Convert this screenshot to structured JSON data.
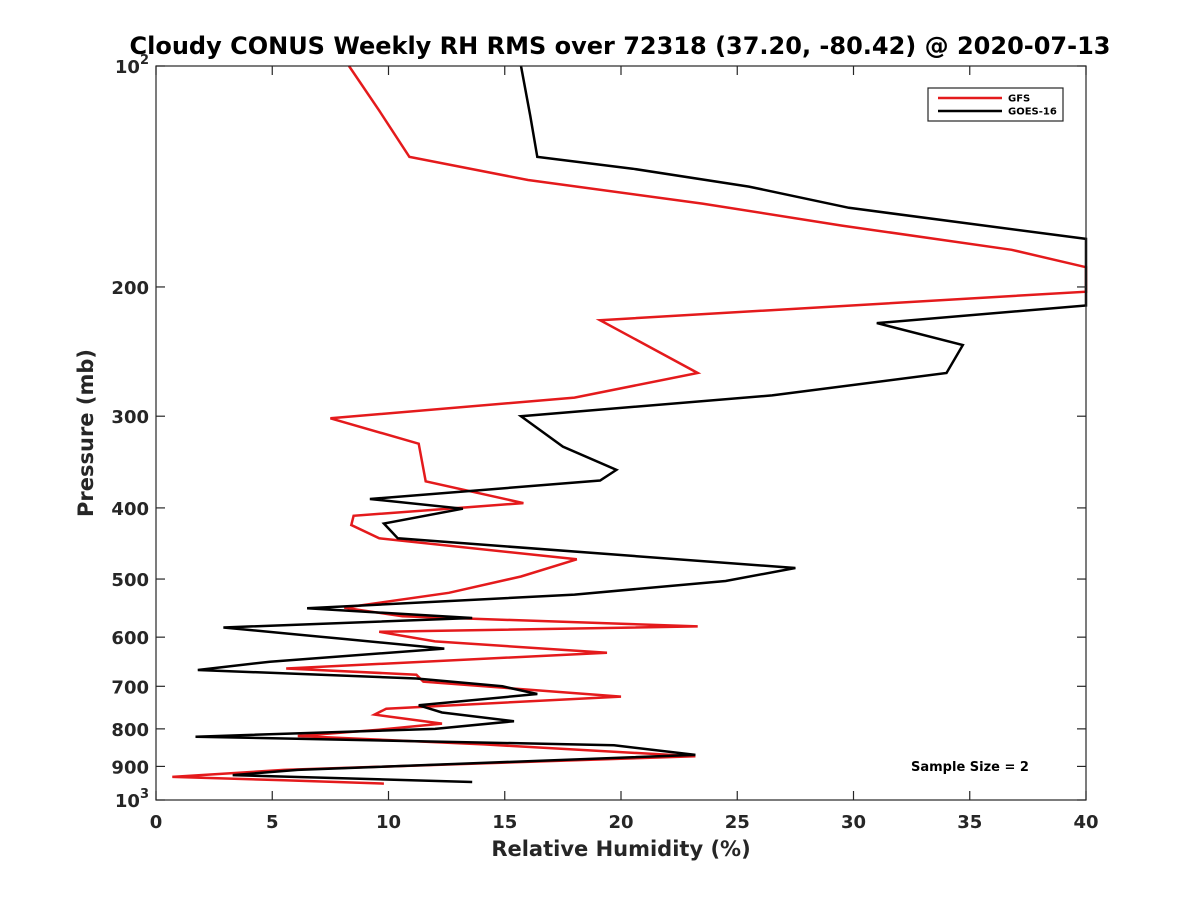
{
  "chart_data": {
    "type": "line",
    "title": "Cloudy CONUS Weekly RH RMS over 72318 (37.20, -80.42) @ 2020-07-13",
    "xlabel": "Relative Humidity (%)",
    "ylabel": "Pressure (mb)",
    "xlim": [
      0,
      40
    ],
    "ylim": [
      100,
      1000
    ],
    "yscale": "log",
    "y_reversed": true,
    "x_ticks": [
      0,
      5,
      10,
      15,
      20,
      25,
      30,
      35,
      40
    ],
    "x_tick_labels": [
      "0",
      "5",
      "10",
      "15",
      "20",
      "25",
      "30",
      "35",
      "40"
    ],
    "y_ticks": [
      100,
      200,
      300,
      400,
      500,
      600,
      700,
      800,
      900,
      1000
    ],
    "y_tick_labels": [
      {
        "base": "10",
        "sup": "2"
      },
      {
        "base": "200",
        "sup": ""
      },
      {
        "base": "300",
        "sup": ""
      },
      {
        "base": "400",
        "sup": ""
      },
      {
        "base": "500",
        "sup": ""
      },
      {
        "base": "600",
        "sup": ""
      },
      {
        "base": "700",
        "sup": ""
      },
      {
        "base": "800",
        "sup": ""
      },
      {
        "base": "900",
        "sup": ""
      },
      {
        "base": "10",
        "sup": "3"
      }
    ],
    "legend_position": "top-right",
    "annotation": "Sample Size = 2",
    "series": [
      {
        "name": "GFS",
        "color": "#e41a1c",
        "points": [
          [
            8.3,
            100
          ],
          [
            9.6,
            115
          ],
          [
            10.9,
            133
          ],
          [
            16.0,
            143
          ],
          [
            23.5,
            154
          ],
          [
            29.5,
            165
          ],
          [
            36.8,
            178
          ],
          [
            40.0,
            188
          ],
          [
            40.0,
            203
          ],
          [
            19.1,
            222
          ],
          [
            23.3,
            262
          ],
          [
            18.0,
            283
          ],
          [
            7.5,
            302
          ],
          [
            11.3,
            327
          ],
          [
            11.6,
            368
          ],
          [
            15.8,
            394
          ],
          [
            8.5,
            410
          ],
          [
            8.4,
            422
          ],
          [
            9.6,
            440
          ],
          [
            18.1,
            470
          ],
          [
            15.7,
            496
          ],
          [
            12.6,
            522
          ],
          [
            8.1,
            547
          ],
          [
            10.6,
            562
          ],
          [
            23.3,
            580
          ],
          [
            9.6,
            590
          ],
          [
            12.0,
            608
          ],
          [
            19.4,
            630
          ],
          [
            5.6,
            662
          ],
          [
            11.2,
            675
          ],
          [
            11.5,
            690
          ],
          [
            20.0,
            723
          ],
          [
            9.9,
            751
          ],
          [
            9.4,
            765
          ],
          [
            12.3,
            787
          ],
          [
            9.6,
            802
          ],
          [
            6.1,
            818
          ],
          [
            14.1,
            840
          ],
          [
            23.2,
            872
          ],
          [
            5.5,
            910
          ],
          [
            0.7,
            930
          ],
          [
            5.5,
            940
          ],
          [
            9.8,
            950
          ]
        ]
      },
      {
        "name": "GOES-16",
        "color": "#000000",
        "points": [
          [
            15.7,
            100
          ],
          [
            16.1,
            117
          ],
          [
            16.4,
            133
          ],
          [
            20.5,
            138
          ],
          [
            25.5,
            146
          ],
          [
            29.8,
            156
          ],
          [
            40.0,
            172
          ],
          [
            40.0,
            212
          ],
          [
            31.0,
            224
          ],
          [
            34.7,
            240
          ],
          [
            34.0,
            262
          ],
          [
            26.5,
            281
          ],
          [
            15.7,
            300
          ],
          [
            17.5,
            330
          ],
          [
            19.8,
            355
          ],
          [
            19.1,
            367
          ],
          [
            9.2,
            389
          ],
          [
            13.2,
            401
          ],
          [
            9.8,
            420
          ],
          [
            10.4,
            440
          ],
          [
            20.5,
            465
          ],
          [
            27.5,
            483
          ],
          [
            24.5,
            503
          ],
          [
            18.0,
            525
          ],
          [
            6.5,
            548
          ],
          [
            13.6,
            565
          ],
          [
            2.9,
            582
          ],
          [
            8.0,
            603
          ],
          [
            12.4,
            622
          ],
          [
            4.9,
            648
          ],
          [
            1.8,
            665
          ],
          [
            11.2,
            683
          ],
          [
            14.9,
            700
          ],
          [
            16.4,
            717
          ],
          [
            11.3,
            743
          ],
          [
            12.3,
            760
          ],
          [
            15.4,
            781
          ],
          [
            12.0,
            800
          ],
          [
            1.7,
            820
          ],
          [
            19.7,
            842
          ],
          [
            23.2,
            868
          ],
          [
            6.1,
            910
          ],
          [
            3.3,
            925
          ],
          [
            13.6,
            945
          ]
        ]
      }
    ]
  }
}
